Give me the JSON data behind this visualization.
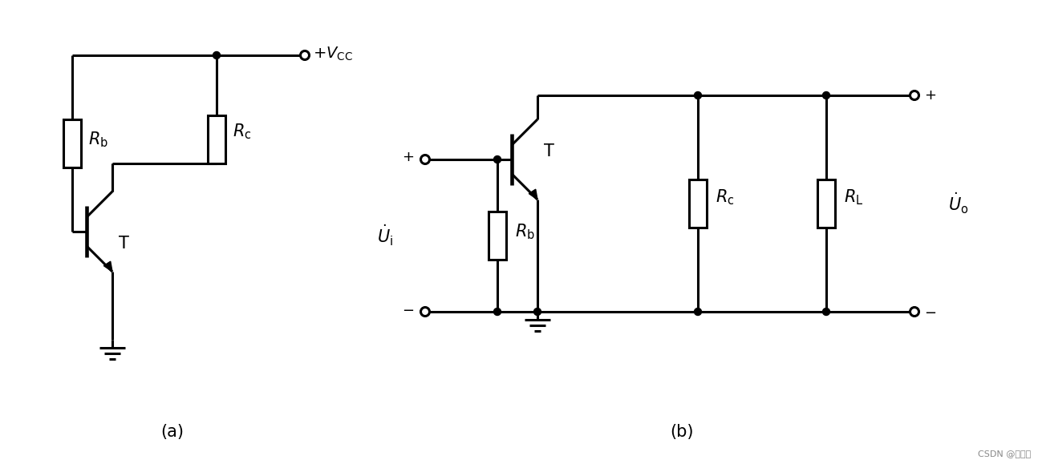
{
  "bg_color": "#ffffff",
  "line_color": "#000000",
  "line_width": 2.2,
  "label_a": "(a)",
  "label_b": "(b)",
  "watermark": "CSDN @妊兽唤"
}
